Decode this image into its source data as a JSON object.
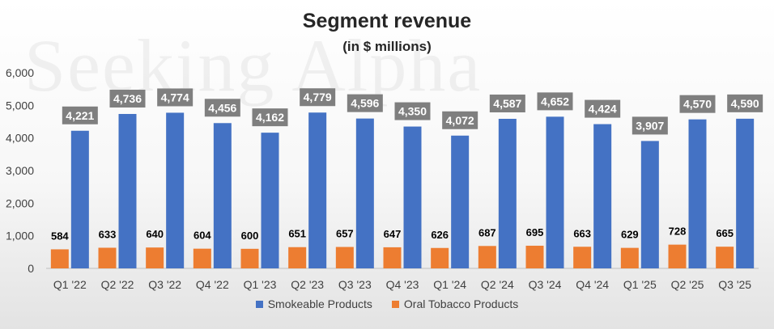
{
  "watermark_text": "Seeking Alpha",
  "chart_data": {
    "type": "bar",
    "title": "Segment revenue",
    "subtitle": "(in $ millions)",
    "xlabel": "",
    "ylabel": "",
    "ylim": [
      0,
      6000
    ],
    "yticks": [
      0,
      1000,
      2000,
      3000,
      4000,
      5000,
      6000
    ],
    "ytick_labels": [
      "0",
      "1,000",
      "2,000",
      "3,000",
      "4,000",
      "5,000",
      "6,000"
    ],
    "grid": false,
    "legend_position": "bottom",
    "categories": [
      "Q1 '22",
      "Q2 '22",
      "Q3 '22",
      "Q4 '22",
      "Q1 '23",
      "Q2 '23",
      "Q3 '23",
      "Q4 '23",
      "Q1 '24",
      "Q2 '24",
      "Q3 '24",
      "Q4 '24",
      "Q1 '25",
      "Q2 '25",
      "Q3 '25"
    ],
    "series": [
      {
        "name": "Oral Tobacco Products",
        "color": "#ed7d31",
        "values": [
          584,
          633,
          640,
          604,
          600,
          651,
          657,
          647,
          626,
          687,
          695,
          663,
          629,
          728,
          665
        ],
        "labels": [
          "584",
          "633",
          "640",
          "604",
          "600",
          "651",
          "657",
          "647",
          "626",
          "687",
          "695",
          "663",
          "629",
          "728",
          "665"
        ]
      },
      {
        "name": "Smokeable Products",
        "color": "#4472c4",
        "values": [
          4221,
          4736,
          4774,
          4456,
          4162,
          4779,
          4596,
          4350,
          4072,
          4587,
          4652,
          4424,
          3907,
          4570,
          4590
        ],
        "labels": [
          "4,221",
          "4,736",
          "4,774",
          "4,456",
          "4,162",
          "4,779",
          "4,596",
          "4,350",
          "4,072",
          "4,587",
          "4,652",
          "4,424",
          "3,907",
          "4,570",
          "4,590"
        ]
      }
    ],
    "legend_order": [
      "Smokeable Products",
      "Oral Tobacco Products"
    ]
  }
}
